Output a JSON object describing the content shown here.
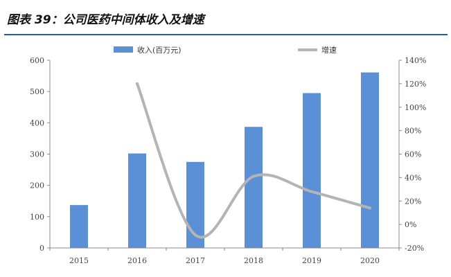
{
  "title": "图表 39：公司医药中间体收入及增速",
  "chart_data": {
    "type": "bar",
    "categories": [
      "2015",
      "2016",
      "2017",
      "2018",
      "2019",
      "2020"
    ],
    "series": [
      {
        "name": "收入(百万元)",
        "type": "bar",
        "axis": "left",
        "color": "#5b8fd6",
        "values": [
          137,
          302,
          275,
          387,
          495,
          561
        ]
      },
      {
        "name": "增速",
        "type": "line",
        "axis": "right",
        "color": "#b4b4b4",
        "values": [
          null,
          1.2,
          -0.09,
          0.41,
          0.28,
          0.14
        ]
      }
    ],
    "y_left": {
      "ylim": [
        0,
        600
      ],
      "ticks": [
        0,
        100,
        200,
        300,
        400,
        500,
        600
      ],
      "tick_labels": [
        "0",
        "100",
        "200",
        "300",
        "400",
        "500",
        "600"
      ]
    },
    "y_right": {
      "ylim": [
        -0.2,
        1.4
      ],
      "ticks": [
        -0.2,
        0,
        0.2,
        0.4,
        0.6,
        0.8,
        1.0,
        1.2,
        1.4
      ],
      "tick_labels": [
        "-20%",
        "0%",
        "20%",
        "40%",
        "60%",
        "80%",
        "100%",
        "120%",
        "140%"
      ]
    },
    "legend": "top",
    "grid": false
  }
}
